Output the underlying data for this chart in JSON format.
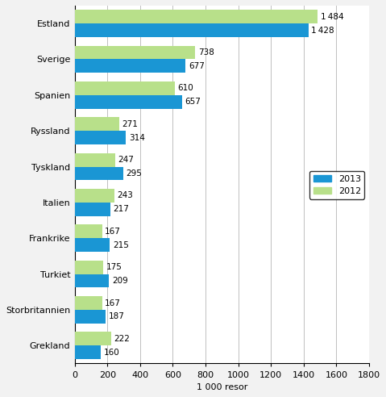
{
  "categories": [
    "Estland",
    "Sverige",
    "Spanien",
    "Ryssland",
    "Tyskland",
    "Italien",
    "Frankrike",
    "Turkiet",
    "Storbritannien",
    "Grekland"
  ],
  "values_2013": [
    1428,
    677,
    657,
    314,
    295,
    217,
    215,
    209,
    187,
    160
  ],
  "values_2012": [
    1484,
    738,
    610,
    271,
    247,
    243,
    167,
    175,
    167,
    222
  ],
  "color_2013": "#1a96d4",
  "color_2012": "#b8e08a",
  "xlabel": "1 000 resor",
  "xlim": [
    0,
    1800
  ],
  "xticks": [
    0,
    200,
    400,
    600,
    800,
    1000,
    1200,
    1400,
    1600,
    1800
  ],
  "legend_labels": [
    "2013",
    "2012"
  ],
  "bar_height": 0.38,
  "background_color": "#f2f2f2",
  "label_fontsize": 7.5,
  "tick_fontsize": 8.0
}
